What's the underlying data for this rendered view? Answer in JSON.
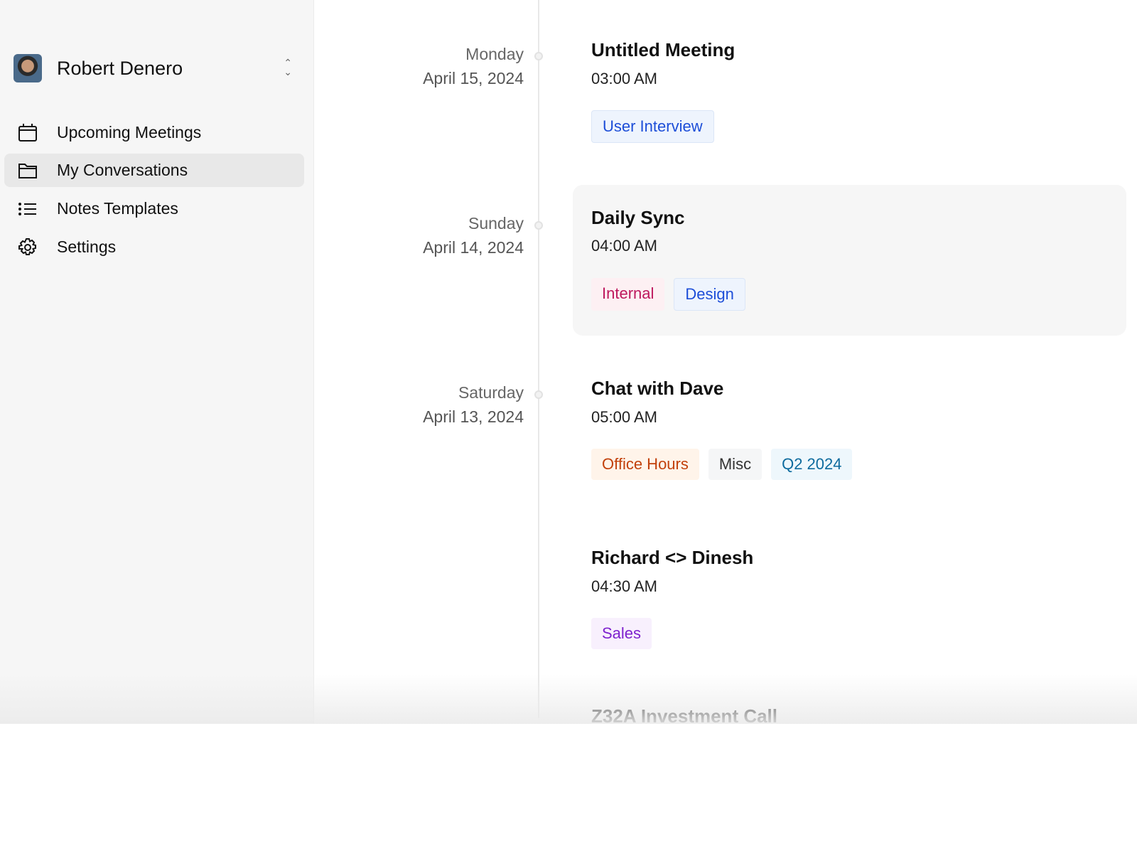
{
  "user": {
    "name": "Robert Denero"
  },
  "nav": [
    {
      "label": "Upcoming Meetings",
      "icon": "calendar-icon"
    },
    {
      "label": "My Conversations",
      "icon": "folder-icon",
      "selected": true
    },
    {
      "label": "Notes Templates",
      "icon": "list-icon"
    },
    {
      "label": "Settings",
      "icon": "gear-icon"
    }
  ],
  "meetings": [
    {
      "weekday": "Monday",
      "date": "April 15, 2024",
      "title": "Untitled Meeting",
      "time": "03:00 AM",
      "tags": [
        {
          "label": "User Interview",
          "color": "#1d4ed8",
          "bg": "#eef4fd"
        }
      ]
    },
    {
      "weekday": "Sunday",
      "date": "April 14, 2024",
      "title": "Daily Sync",
      "time": "04:00 AM",
      "tags": [
        {
          "label": "Internal",
          "color": "#be185d",
          "bg": "#fdf0f3"
        },
        {
          "label": "Design",
          "color": "#1d4ed8",
          "bg": "#eef4fd"
        }
      ]
    },
    {
      "weekday": "Saturday",
      "date": "April 13, 2024",
      "title": "Chat with Dave",
      "time": "05:00 AM",
      "tags": [
        {
          "label": "Office Hours",
          "color": "#c2410c",
          "bg": "#fff4ea"
        },
        {
          "label": "Misc",
          "color": "#333333",
          "bg": "#f5f6f7"
        },
        {
          "label": "Q2 2024",
          "color": "#0e6b9e",
          "bg": "#eef7fc"
        }
      ]
    },
    {
      "title": "Richard <> Dinesh",
      "time": "04:30 AM",
      "tags": [
        {
          "label": "Sales",
          "color": "#7e22ce",
          "bg": "#f8f0fd"
        }
      ]
    },
    {
      "title": "Z32A Investment Call"
    }
  ]
}
